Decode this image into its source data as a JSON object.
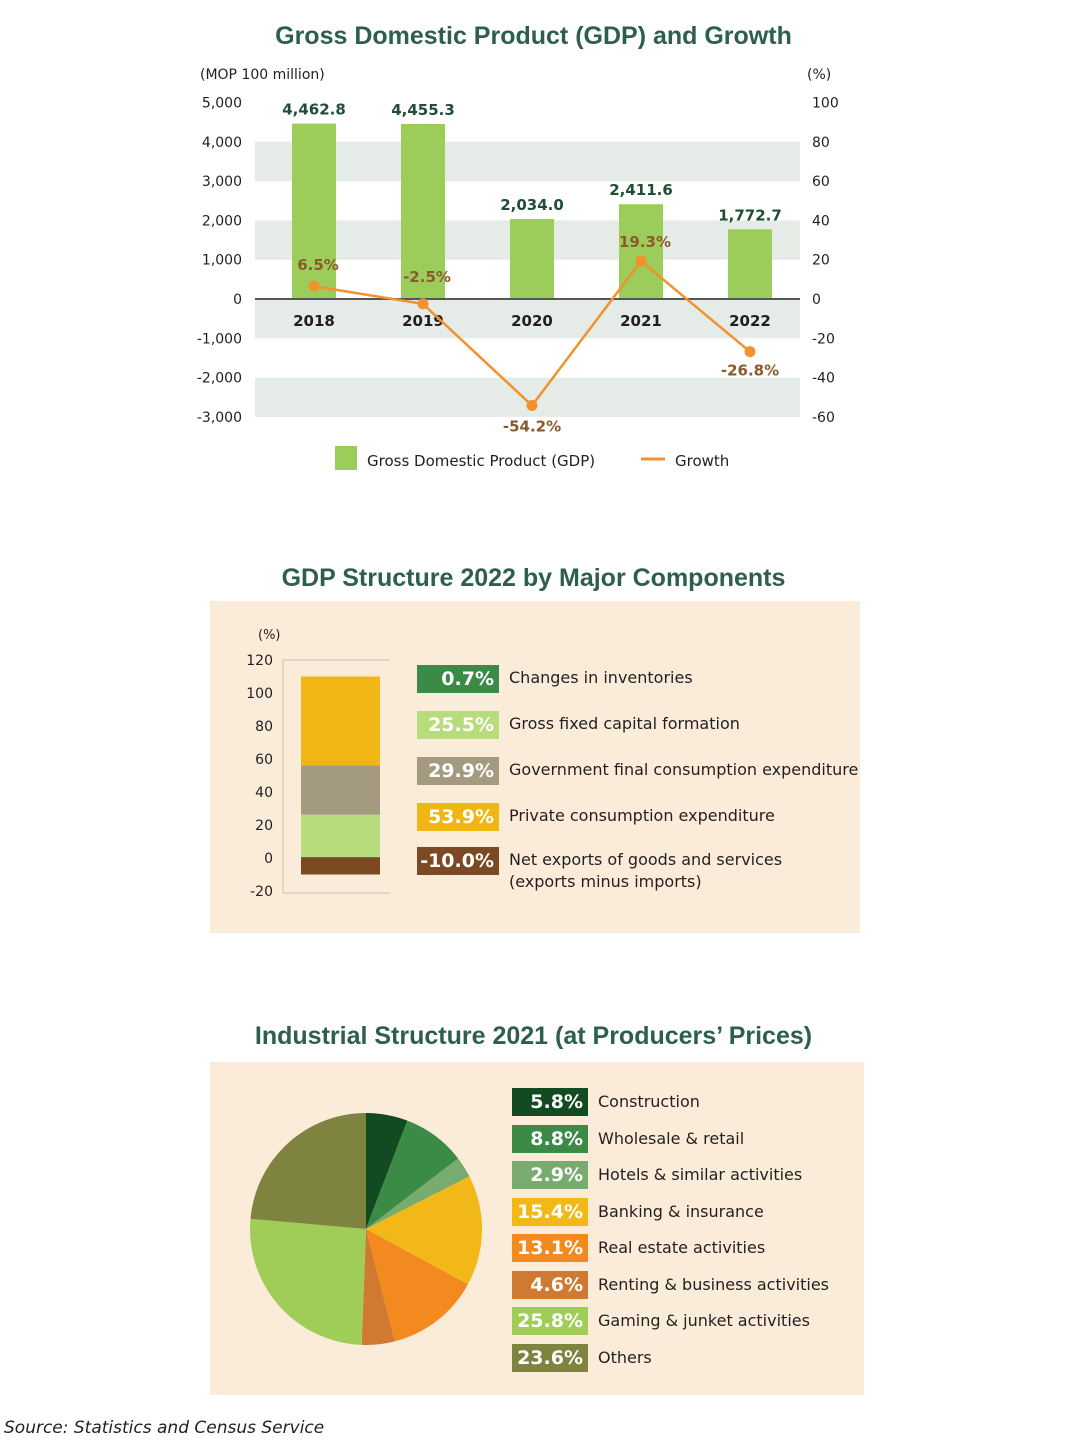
{
  "gdp_chart": {
    "title": "Gross Domestic Product (GDP) and Growth",
    "left_unit": "(MOP 100 million)",
    "right_unit": "(%)",
    "legend": {
      "gdp": "Gross Domestic Product (GDP)",
      "growth": "Growth"
    }
  },
  "structure_chart": {
    "title": "GDP Structure 2022 by Major Components",
    "unit": "(%)"
  },
  "industry_chart": {
    "title": "Industrial Structure 2021 (at Producers’ Prices)"
  },
  "source": "Source: Statistics and Census Service",
  "chart_data": [
    {
      "type": "bar",
      "title": "Gross Domestic Product (GDP) and Growth",
      "categories": [
        "2018",
        "2019",
        "2020",
        "2021",
        "2022"
      ],
      "series": [
        {
          "name": "Gross Domestic Product (GDP)",
          "values": [
            4462.8,
            4455.3,
            2034.0,
            2411.6,
            1772.7
          ],
          "labels": [
            "4,462.8",
            "4,455.3",
            "2,034.0",
            "2,411.6",
            "1,772.7"
          ],
          "axis": "left",
          "color": "#9ccd5a"
        },
        {
          "name": "Growth",
          "type": "line",
          "values": [
            6.5,
            -2.5,
            -54.2,
            19.3,
            -26.8
          ],
          "labels": [
            "6.5%",
            "-2.5%",
            "-54.2%",
            "19.3%",
            "-26.8%"
          ],
          "axis": "right",
          "color": "#f0922e"
        }
      ],
      "ylim_left": [
        -3000,
        5000
      ],
      "ylim_right": [
        -60,
        100
      ],
      "left_ticks": [
        "5,000",
        "4,000",
        "3,000",
        "2,000",
        "1,000",
        "0",
        "-1,000",
        "-2,000",
        "-3,000"
      ],
      "right_ticks": [
        "100",
        "80",
        "60",
        "40",
        "20",
        "0",
        "-20",
        "-40",
        "-60"
      ],
      "ylabel_left": "(MOP 100 million)",
      "ylabel_right": "(%)",
      "legend": "bottom"
    },
    {
      "type": "bar",
      "stacked": true,
      "title": "GDP Structure 2022 by Major Components",
      "ylabel": "(%)",
      "ylim": [
        -20,
        120
      ],
      "ticks": [
        "120",
        "100",
        "80",
        "60",
        "40",
        "20",
        "0",
        "-20"
      ],
      "series": [
        {
          "name": "Changes in inventories",
          "value": 0.7,
          "label": "0.7%",
          "color": "#3b8a45"
        },
        {
          "name": "Gross fixed capital formation",
          "value": 25.5,
          "label": "25.5%",
          "color": "#b7dc7c"
        },
        {
          "name": "Government final consumption expenditure",
          "value": 29.9,
          "label": "29.9%",
          "color": "#a39a80"
        },
        {
          "name": "Private consumption expenditure",
          "value": 53.9,
          "label": "53.9%",
          "color": "#f2b614"
        },
        {
          "name": "Net exports of goods and services",
          "name2": "(exports minus imports)",
          "value": -10.0,
          "label": "-10.0%",
          "color": "#7b4a24"
        }
      ],
      "legend": "right"
    },
    {
      "type": "pie",
      "title": "Industrial Structure 2021 (at Producers’ Prices)",
      "slices": [
        {
          "name": "Construction",
          "value": 5.8,
          "label": "5.8%",
          "color": "#124a21"
        },
        {
          "name": "Wholesale & retail",
          "value": 8.8,
          "label": "8.8%",
          "color": "#3b8a45"
        },
        {
          "name": "Hotels & similar activities",
          "value": 2.9,
          "label": "2.9%",
          "color": "#77ac6e"
        },
        {
          "name": "Banking & insurance",
          "value": 15.4,
          "label": "15.4%",
          "color": "#f2b818"
        },
        {
          "name": "Real estate activities",
          "value": 13.1,
          "label": "13.1%",
          "color": "#f28a1f"
        },
        {
          "name": "Renting & business activities",
          "value": 4.6,
          "label": "4.6%",
          "color": "#cf7a30"
        },
        {
          "name": "Gaming & junket activities",
          "value": 25.8,
          "label": "25.8%",
          "color": "#9fcd58"
        },
        {
          "name": "Others",
          "value": 23.6,
          "label": "23.6%",
          "color": "#7e8440"
        }
      ],
      "legend": "right"
    }
  ]
}
